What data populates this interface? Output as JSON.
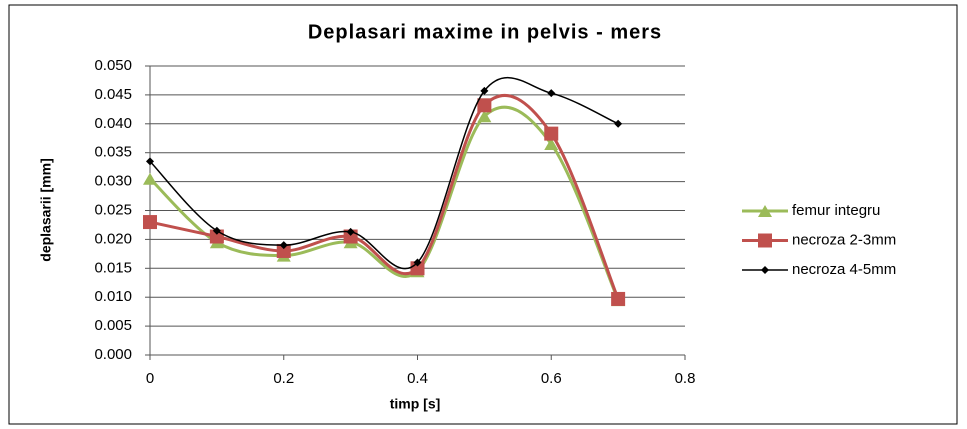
{
  "chart_data": {
    "type": "line",
    "title": "Deplasari maxime in pelvis - mers",
    "x_label": "timp [s]",
    "y_label": "deplasarii [mm]",
    "x": [
      0,
      0.1,
      0.2,
      0.3,
      0.4,
      0.5,
      0.6,
      0.7
    ],
    "series": [
      {
        "name": "femur integru",
        "color": "#9bbb59",
        "marker": "triangle",
        "values": [
          0.0305,
          0.0195,
          0.0172,
          0.0195,
          0.0145,
          0.0413,
          0.0365,
          0.0095
        ]
      },
      {
        "name": "necroza 2-3mm",
        "color": "#c0504d",
        "marker": "square",
        "values": [
          0.023,
          0.0205,
          0.018,
          0.0205,
          0.015,
          0.0432,
          0.0383,
          0.0097
        ]
      },
      {
        "name": "necroza 4-5mm",
        "color": "#000000",
        "marker": "diamond",
        "values": [
          0.0335,
          0.0215,
          0.019,
          0.0213,
          0.016,
          0.0457,
          0.0453,
          0.04
        ]
      }
    ],
    "xlim": [
      0,
      0.8
    ],
    "xticks": [
      0,
      0.2,
      0.4,
      0.6,
      0.8
    ],
    "ylim": [
      0,
      0.05
    ],
    "yticks": [
      {
        "value": 0,
        "label": "0.000"
      },
      {
        "value": 0.005,
        "label": "0.005"
      },
      {
        "value": 0.01,
        "label": "0.010"
      },
      {
        "value": 0.015,
        "label": "0.015"
      },
      {
        "value": 0.02,
        "label": "0.020"
      },
      {
        "value": 0.025,
        "label": "0.025"
      },
      {
        "value": 0.03,
        "label": "0.030"
      },
      {
        "value": 0.035,
        "label": "0.035"
      },
      {
        "value": 0.04,
        "label": "0.040"
      },
      {
        "value": 0.045,
        "label": "0.045"
      },
      {
        "value": 0.05,
        "label": "0.050"
      }
    ],
    "grid": true,
    "smooth": true,
    "legend": "right"
  }
}
